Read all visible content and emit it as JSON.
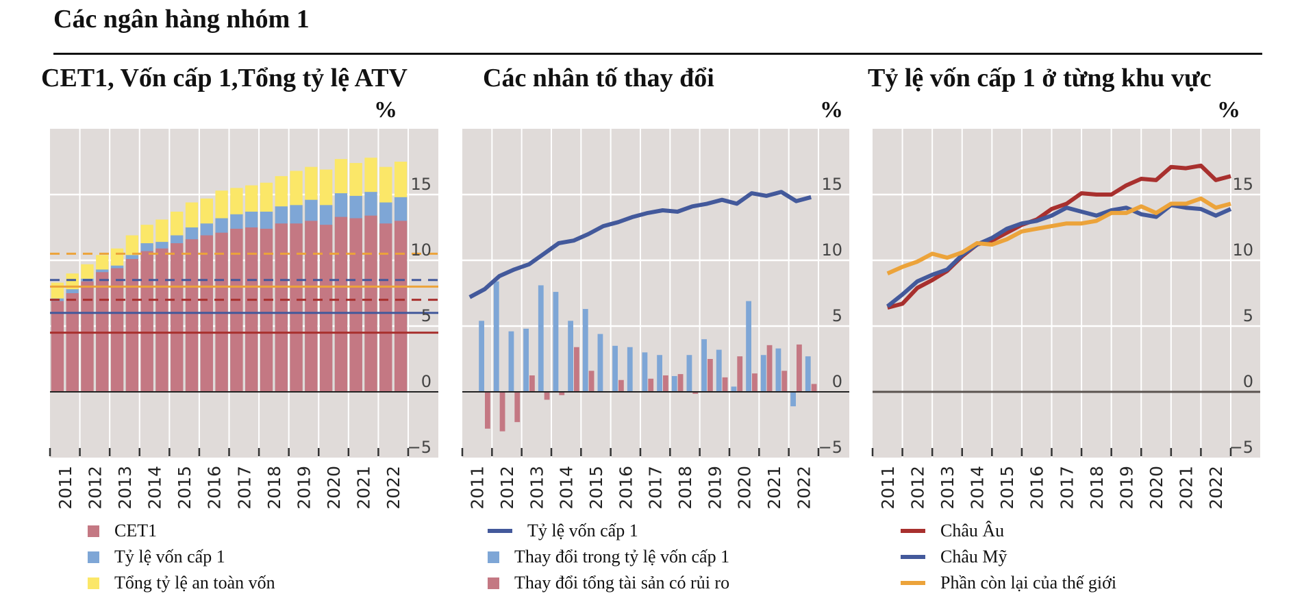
{
  "header": {
    "title": "Các ngân hàng nhóm 1"
  },
  "colors": {
    "cet1": "#c47883",
    "tier1": "#7ea6d6",
    "total": "#fbe768",
    "line_blue": "#43599b",
    "europe": "#a8302e",
    "americas": "#43599b",
    "rest": "#eca33a",
    "ref_orange": "#eca33a",
    "ref_blue": "#43599b",
    "ref_red": "#a8302e",
    "plot_bg": "#e0dbd9"
  },
  "chart_data": [
    {
      "id": "left",
      "type": "bar",
      "stacked": true,
      "title": "CET1, Vốn cấp 1,Tổng tỷ lệ ATV",
      "unit_label": "%",
      "xlabel": "",
      "ylabel": "%",
      "ylim": [
        -5,
        20
      ],
      "yticks": [
        -5,
        0,
        5,
        10,
        15
      ],
      "ytick_labels": [
        "−5",
        "0",
        "5",
        "10",
        "15"
      ],
      "x_tick_labels": [
        "2011",
        "2012",
        "2013",
        "2014",
        "2015",
        "2016",
        "2017",
        "2018",
        "2019",
        "2020",
        "2021",
        "2022"
      ],
      "periods": "half-yearly, 2011H1–2022H2",
      "grid": true,
      "series": [
        {
          "name": "CET1",
          "color_key": "cet1",
          "values": [
            6.9,
            7.5,
            8.4,
            9.1,
            9.4,
            10.1,
            10.7,
            10.9,
            11.3,
            11.6,
            11.9,
            12.1,
            12.4,
            12.5,
            12.4,
            12.8,
            12.8,
            13.0,
            12.7,
            13.3,
            13.2,
            13.4,
            12.8,
            13.0
          ]
        },
        {
          "name": "Tỷ lệ vốn cấp 1",
          "color_key": "tier1",
          "values": [
            7.1,
            7.8,
            8.6,
            9.3,
            9.6,
            10.4,
            11.3,
            11.4,
            11.9,
            12.5,
            12.8,
            13.2,
            13.5,
            13.7,
            13.7,
            14.1,
            14.2,
            14.6,
            14.2,
            15.1,
            14.9,
            15.2,
            14.4,
            14.8
          ]
        },
        {
          "name": "Tổng tỷ lệ an toàn vốn",
          "color_key": "total",
          "values": [
            8.3,
            9.0,
            9.7,
            10.4,
            10.9,
            11.9,
            12.7,
            13.1,
            13.7,
            14.4,
            14.7,
            15.3,
            15.5,
            15.7,
            15.9,
            16.4,
            16.8,
            17.1,
            16.9,
            17.7,
            17.4,
            17.8,
            17.1,
            17.5
          ]
        }
      ],
      "reference_lines": [
        {
          "value": 10.5,
          "color_key": "ref_orange",
          "style": "dashed"
        },
        {
          "value": 8.5,
          "color_key": "ref_blue",
          "style": "dashed"
        },
        {
          "value": 8.0,
          "color_key": "ref_orange",
          "style": "solid"
        },
        {
          "value": 7.0,
          "color_key": "ref_red",
          "style": "dashed"
        },
        {
          "value": 6.0,
          "color_key": "ref_blue",
          "style": "solid"
        },
        {
          "value": 4.5,
          "color_key": "ref_red",
          "style": "solid"
        }
      ],
      "legend": [
        {
          "label": "CET1",
          "color_key": "cet1",
          "kind": "box"
        },
        {
          "label": "Tỷ lệ vốn cấp 1",
          "color_key": "tier1",
          "kind": "box"
        },
        {
          "label": "Tổng tỷ lệ an toàn vốn",
          "color_key": "total",
          "kind": "box"
        }
      ],
      "legend_position": "bottom"
    },
    {
      "id": "middle",
      "type": "bar",
      "title": "Các nhân tố thay đổi",
      "unit_label": "%",
      "xlabel": "",
      "ylabel": "%",
      "ylim": [
        -5,
        20
      ],
      "yticks": [
        -5,
        0,
        5,
        10,
        15
      ],
      "ytick_labels": [
        "−5",
        "0",
        "5",
        "10",
        "15"
      ],
      "x_tick_labels": [
        "2011",
        "2012",
        "2013",
        "2014",
        "2015",
        "2016",
        "2017",
        "2018",
        "2019",
        "2020",
        "2021",
        "2022"
      ],
      "periods": "half-yearly; line 2011H1–2022H2, bars 2011H2–2022H2",
      "grid": true,
      "line_series": {
        "name": "Tỷ lệ vốn cấp 1",
        "color_key": "line_blue",
        "values": [
          7.2,
          7.8,
          8.8,
          9.3,
          9.7,
          10.5,
          11.3,
          11.5,
          12.0,
          12.6,
          12.9,
          13.3,
          13.6,
          13.8,
          13.7,
          14.1,
          14.3,
          14.6,
          14.3,
          15.1,
          14.9,
          15.2,
          14.5,
          14.8
        ]
      },
      "bar_series": [
        {
          "name": "Thay đổi trong tỷ lệ vốn cấp 1",
          "color_key": "tier1",
          "values": [
            5.4,
            8.4,
            4.6,
            4.8,
            8.1,
            7.6,
            5.4,
            6.3,
            4.4,
            3.5,
            3.4,
            3.0,
            2.8,
            1.2,
            2.8,
            4.0,
            3.2,
            0.4,
            6.9,
            2.8,
            3.3,
            -1.1,
            2.7
          ]
        },
        {
          "name": "Thay đổi tổng tài sản có rủi ro",
          "color_key": "cet1",
          "values": [
            -2.8,
            -3.0,
            -2.3,
            1.25,
            -0.6,
            -0.25,
            3.4,
            1.6,
            0.0,
            0.9,
            0.0,
            1.0,
            1.25,
            1.35,
            -0.15,
            2.5,
            1.1,
            2.7,
            1.4,
            3.55,
            1.6,
            3.6,
            0.6
          ]
        }
      ],
      "legend": [
        {
          "label": "Tỷ lệ vốn cấp 1",
          "color_key": "line_blue",
          "kind": "line"
        },
        {
          "label": "Thay đổi trong tỷ lệ vốn cấp 1",
          "color_key": "tier1",
          "kind": "box"
        },
        {
          "label": "Thay đổi tổng tài sản có rủi ro",
          "color_key": "cet1",
          "kind": "box"
        }
      ],
      "legend_position": "bottom"
    },
    {
      "id": "right",
      "type": "line",
      "title": "Tỷ lệ vốn cấp 1 ở từng khu vực",
      "unit_label": "%",
      "xlabel": "",
      "ylabel": "%",
      "ylim": [
        -5,
        20
      ],
      "yticks": [
        -5,
        0,
        5,
        10,
        15
      ],
      "ytick_labels": [
        "−5",
        "0",
        "5",
        "10",
        "15"
      ],
      "x_tick_labels": [
        "2011",
        "2012",
        "2013",
        "2014",
        "2015",
        "2016",
        "2017",
        "2018",
        "2019",
        "2020",
        "2021",
        "2022"
      ],
      "periods": "half-yearly, 2011H1–2022H2",
      "grid": true,
      "series": [
        {
          "name": "Châu Âu",
          "color_key": "europe",
          "values": [
            6.4,
            6.7,
            7.9,
            8.5,
            9.2,
            10.3,
            11.2,
            11.5,
            12.1,
            12.7,
            13.1,
            13.9,
            14.3,
            15.1,
            15.0,
            15.0,
            15.7,
            16.2,
            16.1,
            17.1,
            17.0,
            17.2,
            16.1,
            16.4
          ]
        },
        {
          "name": "Châu Mỹ",
          "color_key": "americas",
          "values": [
            6.5,
            7.4,
            8.4,
            8.9,
            9.3,
            10.4,
            11.2,
            11.7,
            12.4,
            12.8,
            13.0,
            13.4,
            14.0,
            13.7,
            13.4,
            13.8,
            14.0,
            13.5,
            13.3,
            14.2,
            14.0,
            13.9,
            13.4,
            13.9
          ]
        },
        {
          "name": "Phần còn lại của thế giới",
          "color_key": "rest",
          "values": [
            9.0,
            9.5,
            9.9,
            10.5,
            10.2,
            10.6,
            11.3,
            11.2,
            11.6,
            12.2,
            12.4,
            12.6,
            12.8,
            12.8,
            13.0,
            13.6,
            13.6,
            14.1,
            13.6,
            14.3,
            14.3,
            14.7,
            14.0,
            14.3
          ]
        }
      ],
      "legend": [
        {
          "label": "Châu Âu",
          "color_key": "europe",
          "kind": "line"
        },
        {
          "label": "Châu Mỹ",
          "color_key": "americas",
          "kind": "line"
        },
        {
          "label": "Phần còn lại của thế giới",
          "color_key": "rest",
          "kind": "line"
        }
      ],
      "legend_position": "bottom"
    }
  ]
}
